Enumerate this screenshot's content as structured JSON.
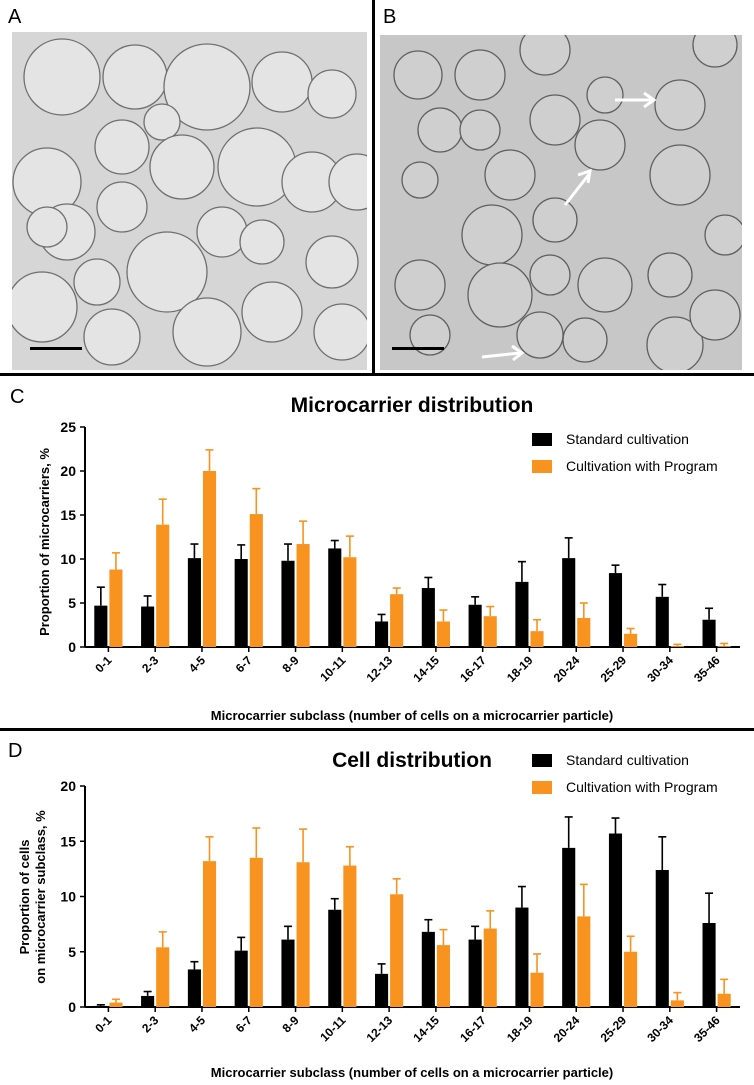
{
  "panels": {
    "a": "A",
    "b": "B",
    "c": "C",
    "d": "D"
  },
  "colors": {
    "standard": "#000000",
    "program": "#f7931e",
    "micro_bg_a": "#d7d7d7",
    "micro_bg_b": "#c7c7c7"
  },
  "chart_data": [
    {
      "type": "bar",
      "title": "Microcarrier distribution",
      "xlabel": "Microcarrier subclass (number of cells on a microcarrier particle)",
      "ylabel": "Proportion of microcarriers, %",
      "ylim": [
        0,
        25
      ],
      "yticks": [
        "0",
        "5",
        "10",
        "15",
        "20",
        "25"
      ],
      "legend_position": "top-right",
      "categories": [
        "0-1",
        "2-3",
        "4-5",
        "6-7",
        "8-9",
        "10-11",
        "12-13",
        "14-15",
        "16-17",
        "18-19",
        "20-24",
        "25-29",
        "30-34",
        "35-46"
      ],
      "series": [
        {
          "name": "Standard cultivation",
          "color": "#000000",
          "values": [
            4.7,
            4.6,
            10.1,
            10.0,
            9.8,
            11.2,
            2.9,
            6.7,
            4.8,
            7.4,
            10.1,
            8.4,
            5.7,
            3.1
          ],
          "errors": [
            2.1,
            1.2,
            1.6,
            1.6,
            1.9,
            0.9,
            0.8,
            1.2,
            0.9,
            2.3,
            2.3,
            0.9,
            1.4,
            1.3
          ]
        },
        {
          "name": "Cultivation with Program",
          "color": "#f7931e",
          "values": [
            8.8,
            13.9,
            20.0,
            15.1,
            11.7,
            10.2,
            6.0,
            2.9,
            3.5,
            1.8,
            3.3,
            1.5,
            0.1,
            0.1
          ],
          "errors": [
            1.9,
            2.9,
            2.4,
            2.9,
            2.6,
            2.4,
            0.7,
            1.3,
            1.1,
            1.3,
            1.7,
            0.6,
            0.2,
            0.3
          ]
        }
      ]
    },
    {
      "type": "bar",
      "title": "Cell distribution",
      "xlabel": "Microcarrier subclass (number of cells on a microcarrier particle)",
      "ylabel": [
        "Proportion of cells",
        "on microcarrier subclass, %"
      ],
      "ylim": [
        0,
        20
      ],
      "yticks": [
        "0",
        "5",
        "10",
        "15",
        "20"
      ],
      "legend_position": "top-right",
      "categories": [
        "0-1",
        "2-3",
        "4-5",
        "6-7",
        "8-9",
        "10-11",
        "12-13",
        "14-15",
        "16-17",
        "18-19",
        "20-24",
        "25-29",
        "30-34",
        "35-46"
      ],
      "series": [
        {
          "name": "Standard cultivation",
          "color": "#000000",
          "values": [
            0.1,
            1.0,
            3.4,
            5.1,
            6.1,
            8.8,
            3.0,
            6.8,
            6.1,
            9.0,
            14.4,
            15.7,
            12.4,
            7.6
          ],
          "errors": [
            0.1,
            0.4,
            0.7,
            1.2,
            1.2,
            1.0,
            0.9,
            1.1,
            1.2,
            1.9,
            2.8,
            1.4,
            3.0,
            2.7
          ]
        },
        {
          "name": "Cultivation with Program",
          "color": "#f7931e",
          "values": [
            0.4,
            5.4,
            13.2,
            13.5,
            13.1,
            12.8,
            10.2,
            5.6,
            7.1,
            3.1,
            8.2,
            5.0,
            0.6,
            1.2
          ],
          "errors": [
            0.3,
            1.4,
            2.2,
            2.7,
            3.0,
            1.7,
            1.4,
            1.4,
            1.6,
            1.7,
            2.9,
            1.4,
            0.7,
            1.3
          ]
        }
      ]
    }
  ]
}
